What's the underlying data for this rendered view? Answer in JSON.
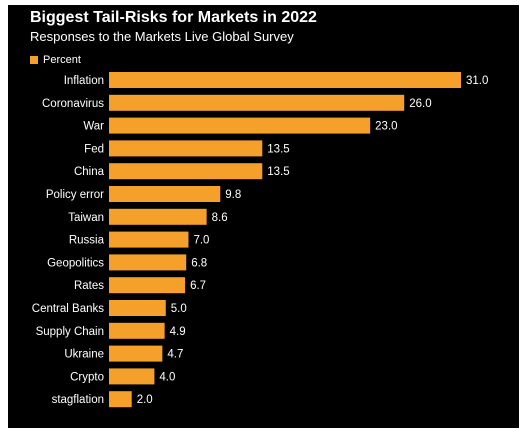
{
  "chart_data": {
    "type": "bar",
    "orientation": "horizontal",
    "title": "Biggest Tail-Risks for Markets in 2022",
    "subtitle": "Responses to the Markets Live Global Survey",
    "legend": {
      "position": "top-left",
      "entries": [
        "Percent"
      ]
    },
    "categories": [
      "Inflation",
      "Coronavirus",
      "War",
      "Fed",
      "China",
      "Policy error",
      "Taiwan",
      "Russia",
      "Geopolitics",
      "Rates",
      "Central Banks",
      "Supply Chain",
      "Ukraine",
      "Crypto",
      "stagflation"
    ],
    "series": [
      {
        "name": "Percent",
        "values": [
          31.0,
          26.0,
          23.0,
          13.5,
          13.5,
          9.8,
          8.6,
          7.0,
          6.8,
          6.7,
          5.0,
          4.9,
          4.7,
          4.0,
          2.0
        ],
        "value_labels": [
          "31.0",
          "26.0",
          "23.0",
          "13.5",
          "13.5",
          "9.8",
          "8.6",
          "7.0",
          "6.8",
          "6.7",
          "5.0",
          "4.9",
          "4.7",
          "4.0",
          "2.0"
        ]
      }
    ],
    "xlim": [
      0,
      31
    ],
    "grid": false,
    "colors": {
      "bar": "#F5A02A",
      "background": "#000000",
      "text": "#FFFFFF"
    }
  }
}
